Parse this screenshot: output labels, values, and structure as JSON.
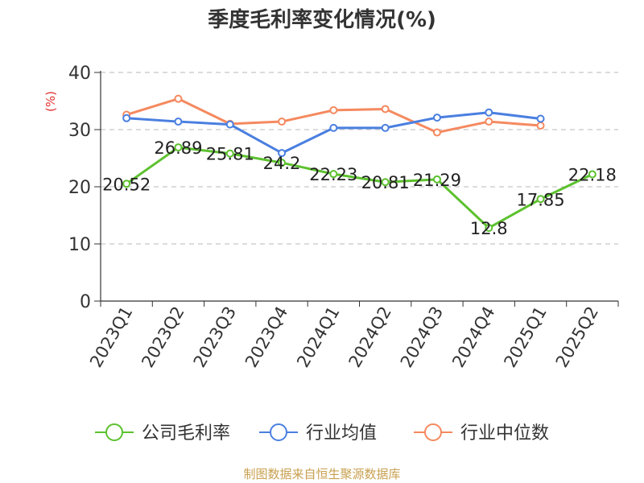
{
  "chart_data": {
    "type": "line",
    "title": "季度毛利率变化情况(%)",
    "ylabel": "(%)",
    "xlabel": "",
    "categories": [
      "2023Q1",
      "2023Q2",
      "2023Q3",
      "2023Q4",
      "2024Q1",
      "2024Q2",
      "2024Q3",
      "2024Q4",
      "2025Q1",
      "2025Q2"
    ],
    "ylim": [
      0,
      40
    ],
    "yticks": [
      "0",
      "10",
      "20",
      "30",
      "40"
    ],
    "grid": true,
    "legend_position": "bottom",
    "series": [
      {
        "name": "公司毛利率",
        "color": "#5cc12e",
        "values": [
          20.52,
          26.89,
          25.81,
          24.2,
          22.23,
          20.81,
          21.29,
          12.8,
          17.85,
          22.18
        ],
        "labels": [
          "20.52",
          "26.89",
          "25.81",
          "24.2",
          "22.23",
          "20.81",
          "21.29",
          "12.8",
          "17.85",
          "22.18"
        ]
      },
      {
        "name": "行业均值",
        "color": "#4a7fe0",
        "values": [
          32.0,
          31.4,
          30.9,
          25.9,
          30.3,
          30.3,
          32.1,
          33.0,
          31.9,
          null
        ]
      },
      {
        "name": "行业中位数",
        "color": "#f5895f",
        "values": [
          32.6,
          35.4,
          31.0,
          31.4,
          33.4,
          33.6,
          29.5,
          31.4,
          30.7,
          null
        ]
      }
    ]
  },
  "source": "制图数据来自恒生聚源数据库"
}
